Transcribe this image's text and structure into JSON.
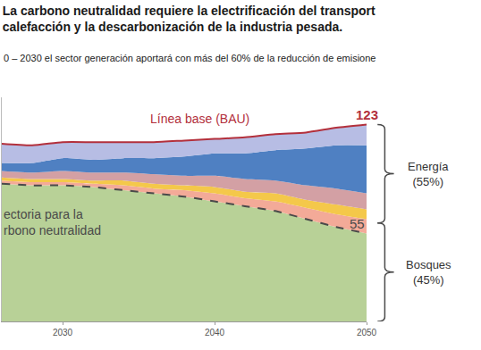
{
  "chart_data": {
    "type": "area",
    "title": "La carbono neutralidad requiere la electrificación del transport\ncalefacción y la descarbonización de la industria pesada.",
    "subtitle": "0 – 2030 el sector generación aportará con más del 60% de la reducción de emisione",
    "x": [
      2026,
      2028,
      2030,
      2032,
      2034,
      2036,
      2038,
      2040,
      2042,
      2044,
      2046,
      2048,
      2050
    ],
    "xlim": [
      2026,
      2050
    ],
    "xticks": [
      2030,
      2040,
      2050
    ],
    "ylim": [
      0,
      140
    ],
    "yticks": [],
    "stacked": true,
    "grid": false,
    "tick_labels": "x",
    "series": [
      {
        "color": "#b8d197",
        "line_style": "dashed",
        "values": [
          86,
          85,
          85,
          84,
          82,
          80,
          78,
          75,
          72,
          69,
          64,
          59,
          55
        ]
      },
      {
        "color": "#f3aa98",
        "values": [
          2,
          2,
          2,
          2,
          3,
          3,
          4,
          5,
          5,
          6,
          7,
          8,
          9
        ]
      },
      {
        "color": "#f4c84a",
        "values": [
          2,
          2,
          2,
          2,
          3,
          3,
          3,
          4,
          4,
          5,
          5,
          6,
          6
        ]
      },
      {
        "color": "#d3a0a4",
        "values": [
          4,
          4,
          5,
          5,
          5,
          6,
          6,
          7,
          8,
          8,
          9,
          10,
          10
        ]
      },
      {
        "color": "#4f80c2",
        "values": [
          5,
          6,
          8,
          8,
          9,
          10,
          12,
          14,
          16,
          19,
          23,
          27,
          30
        ]
      },
      {
        "color": "#b7bde4",
        "line_style": "solid",
        "values": [
          12,
          11,
          10,
          11,
          10,
          10,
          10,
          9,
          10,
          10,
          10,
          11,
          13
        ]
      }
    ],
    "annotations": [
      {
        "text": "Línea base (BAU)",
        "x": 2039,
        "y": 121
      },
      {
        "text": "123",
        "x": 2050,
        "y": 123
      },
      {
        "text": "55",
        "x": 2050,
        "y": 55
      },
      {
        "text": "ectoria para la\nrbono neutralidad",
        "x": 2026,
        "y": 62
      }
    ],
    "groups": [
      {
        "label": "Energía (55%)"
      },
      {
        "label": "Bosques (45%)"
      }
    ]
  }
}
